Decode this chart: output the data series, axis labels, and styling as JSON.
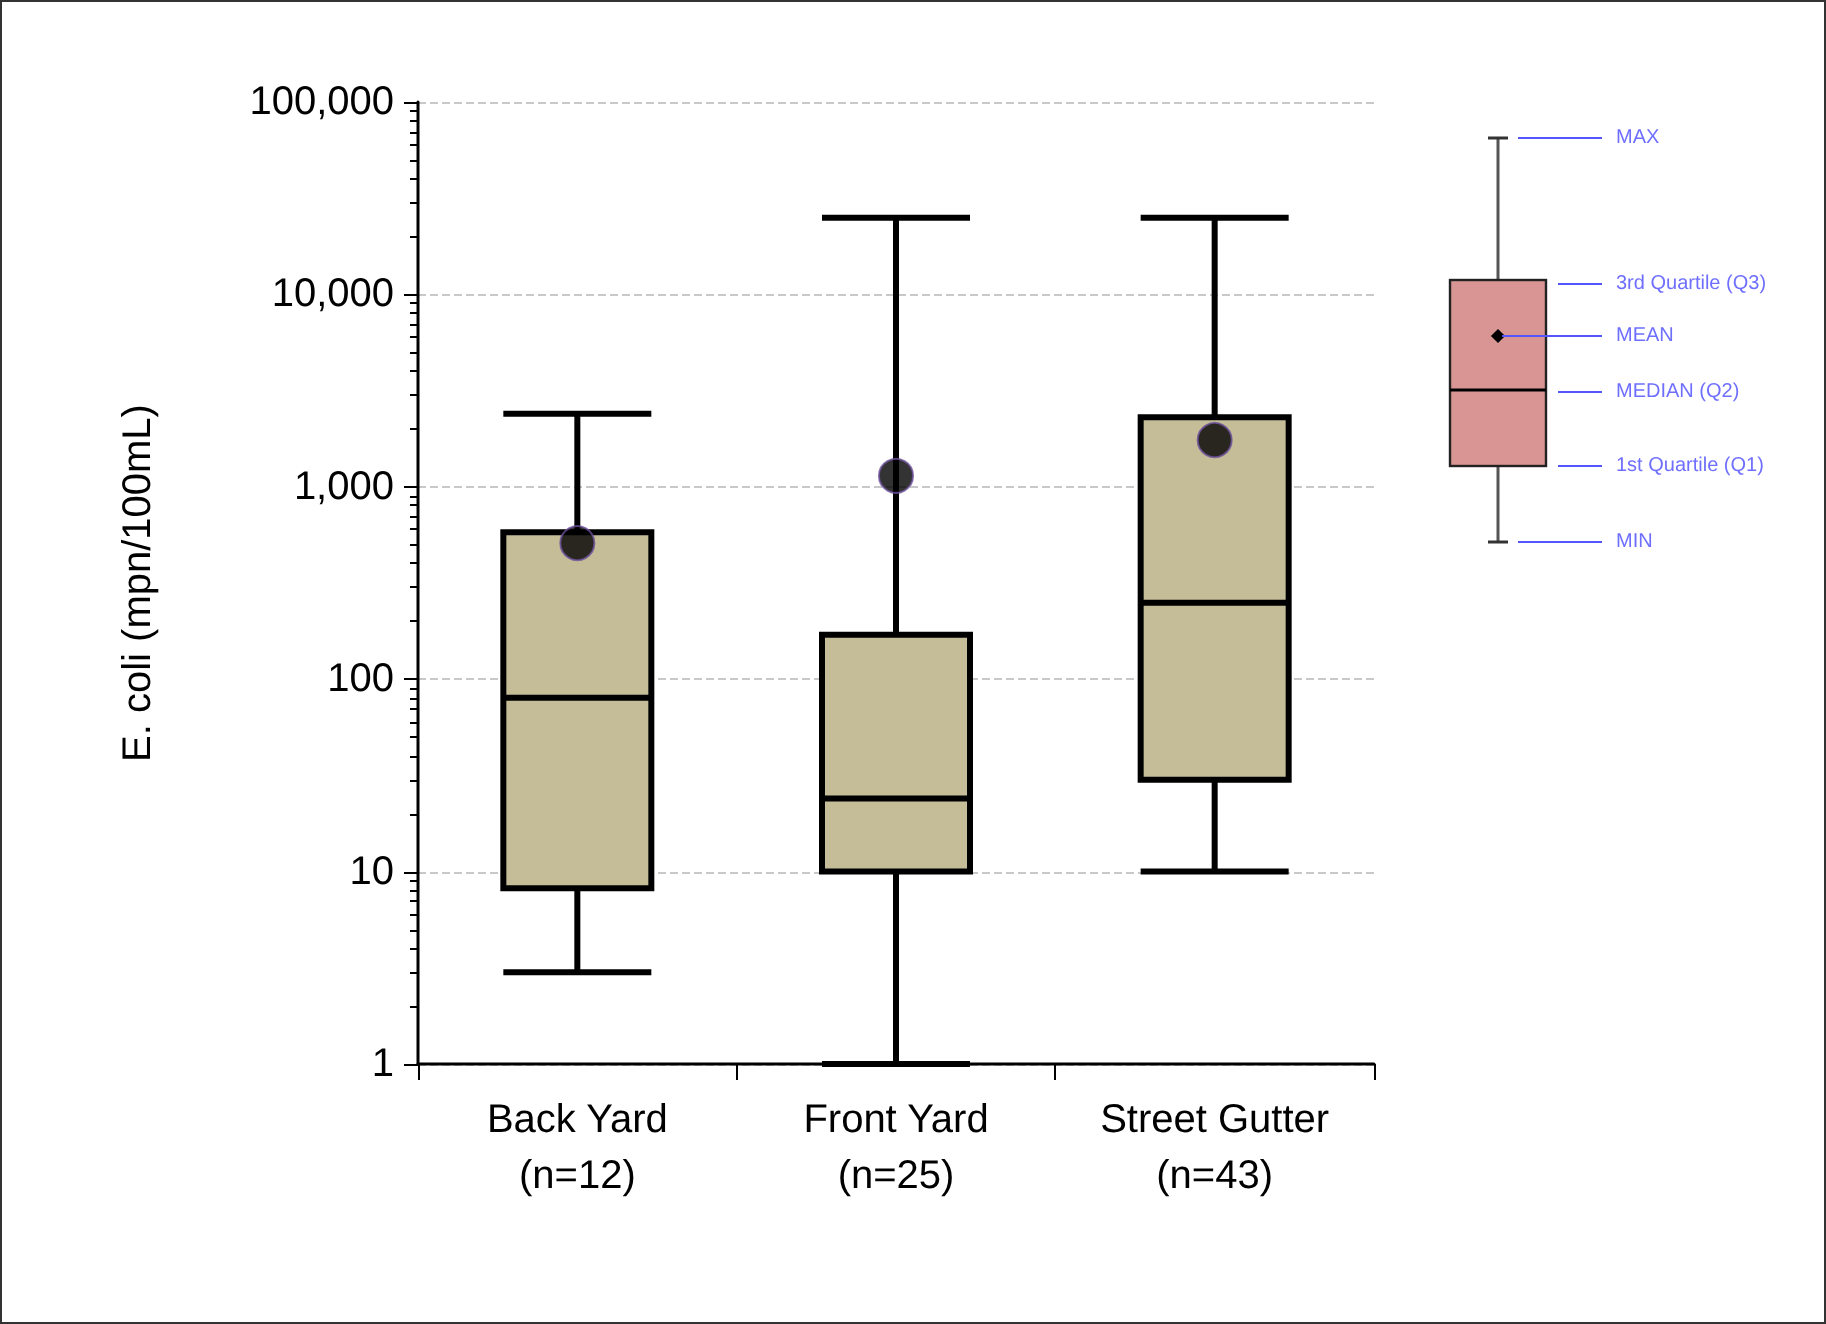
{
  "chart_data": {
    "type": "box",
    "ylabel": "E. coli (mpn/100mL)",
    "categories": [
      "Back Yard\n(n=12)",
      "Front Yard\n(n=25)",
      "Street Gutter\n(n=43)"
    ],
    "color": "#c5bd98",
    "boxes": [
      {
        "low": 3,
        "q1": 8.2,
        "median": 80,
        "q3": 580,
        "high": 2400,
        "mean": 510
      },
      {
        "low": 1,
        "q1": 10,
        "median": 24,
        "q3": 170,
        "high": 25000,
        "mean": 1140
      },
      {
        "low": 10,
        "q1": 30,
        "median": 250,
        "q3": 2300,
        "high": 25000,
        "mean": 1750
      }
    ],
    "log": "y",
    "ylim": [
      1,
      100000
    ],
    "yticks": [
      1,
      10,
      100,
      {
        "value": 1000,
        "label": "1,000"
      },
      {
        "value": 10000,
        "label": "10,000"
      },
      {
        "value": 100000,
        "label": "100,000"
      }
    ],
    "grid": "y",
    "annotations": [
      "MAX",
      "3rd Quartile  (Q3)",
      "MEAN",
      "MEDIAN (Q2)",
      "1st Quartile  (Q1)",
      "MIN"
    ]
  }
}
